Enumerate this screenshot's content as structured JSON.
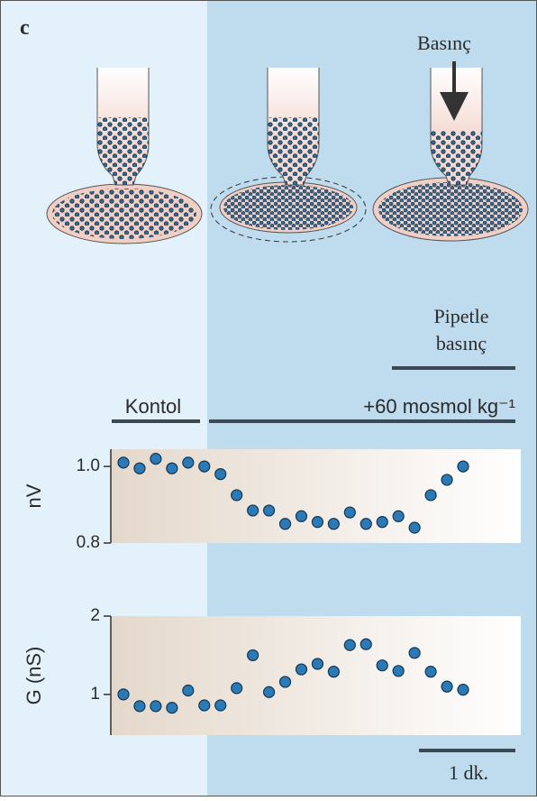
{
  "figure": {
    "panel_label": "c",
    "pressure_label": "Basınç",
    "pipette_pressure_lines": [
      "Pipetle",
      "basınç"
    ],
    "control_label": "Kontol",
    "treatment_label": "+60 mosmol kg⁻¹",
    "scale_label": "1 dk."
  },
  "chart_data": [
    {
      "type": "scatter",
      "y_label": "nV",
      "series": [
        {
          "color": "#2a7ab8",
          "values": [
            1.01,
            0.995,
            1.02,
            0.995,
            1.01,
            1.0,
            0.98,
            0.925,
            0.885,
            0.885,
            0.85,
            0.87,
            0.855,
            0.85,
            0.88,
            0.85,
            0.855,
            0.87,
            0.84,
            0.925,
            0.965,
            1.0
          ]
        }
      ],
      "ylim": [
        0.8,
        1.045
      ],
      "yticks": [
        0.8,
        {
          "value": 1.0,
          "label": "1.0"
        }
      ]
    },
    {
      "type": "scatter",
      "y_label": "G (nS)",
      "series": [
        {
          "color": "#2a7ab8",
          "values": [
            1.0,
            0.85,
            0.85,
            0.83,
            1.05,
            0.86,
            0.86,
            1.08,
            1.5,
            1.03,
            1.16,
            1.32,
            1.39,
            1.29,
            1.63,
            1.64,
            1.37,
            1.3,
            1.53,
            1.29,
            1.1,
            1.06
          ]
        }
      ],
      "ylim": [
        0.48,
        2
      ],
      "yticks": [
        1,
        2
      ]
    }
  ]
}
